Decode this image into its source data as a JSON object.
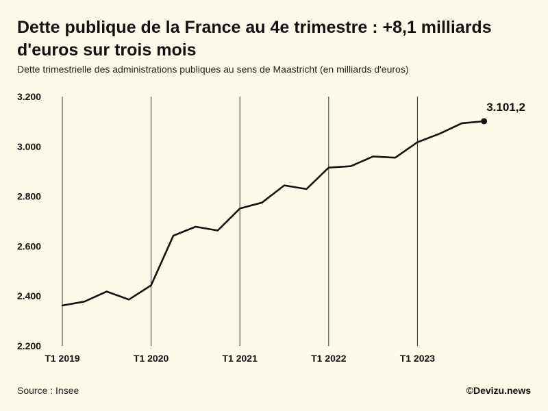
{
  "header": {
    "title": "Dette publique de la France au 4e trimestre : +8,1 milliards d'euros sur trois mois",
    "subtitle": "Dette trimestrielle des administrations publiques au sens de Maastricht (en milliards d'euros)"
  },
  "footer": {
    "source": "Source : Insee",
    "credit": "©Devizu.news"
  },
  "colors": {
    "background": "#fdfaeb",
    "line": "#111111",
    "gridline": "#333333"
  },
  "chart_data": {
    "type": "line",
    "title": "Dette publique de la France au 4e trimestre : +8,1 milliards d'euros sur trois mois",
    "subtitle": "Dette trimestrielle des administrations publiques au sens de Maastricht (en milliards d'euros)",
    "xlabel": "",
    "ylabel": "",
    "ylim": [
      2200,
      3200
    ],
    "y_ticks": [
      2200,
      2400,
      2600,
      2800,
      3000,
      3200
    ],
    "y_tick_labels": [
      "2.200",
      "2.400",
      "2.600",
      "2.800",
      "3.000",
      "3.200"
    ],
    "x_ticks": [
      "T1 2019",
      "T1 2020",
      "T1 2021",
      "T1 2022",
      "T1 2023"
    ],
    "vertical_gridlines": true,
    "horizontal_gridlines": false,
    "legend": "none",
    "x": [
      "T1 2019",
      "T2 2019",
      "T3 2019",
      "T4 2019",
      "T1 2020",
      "T2 2020",
      "T3 2020",
      "T4 2020",
      "T1 2021",
      "T2 2021",
      "T3 2021",
      "T4 2021",
      "T1 2022",
      "T2 2022",
      "T3 2022",
      "T4 2022",
      "T1 2023",
      "T2 2023",
      "T3 2023",
      "T4 2023"
    ],
    "values": [
      2362,
      2378,
      2418,
      2386,
      2443,
      2642,
      2678,
      2663,
      2751,
      2775,
      2844,
      2829,
      2915,
      2921,
      2960,
      2955,
      3017,
      3051,
      3093,
      3101.2
    ],
    "end_label": "3.101,2"
  }
}
